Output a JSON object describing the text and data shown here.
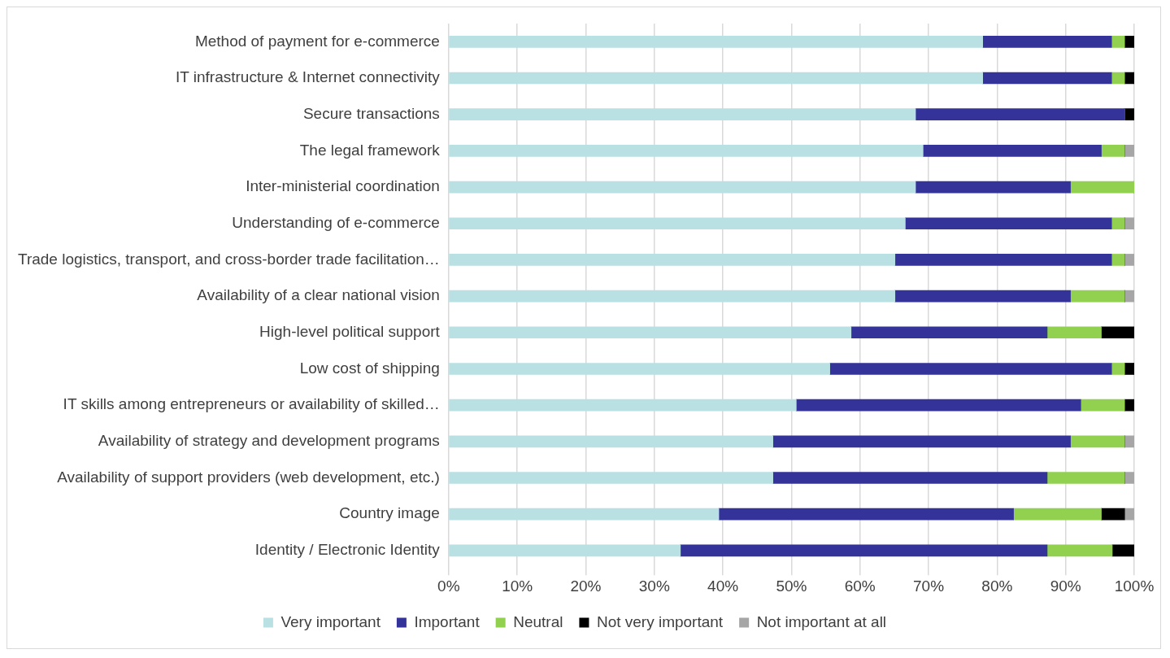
{
  "chart_data": {
    "type": "bar",
    "orientation": "horizontal",
    "stacked": true,
    "categories": [
      "Method of payment for e-commerce",
      "IT infrastructure & Internet connectivity",
      "Secure transactions",
      "The legal framework",
      "Inter-ministerial coordination",
      "Understanding of e-commerce",
      "Trade logistics, transport, and cross-border trade facilitation…",
      "Availability of a clear national vision",
      "High-level political support",
      "Low cost of shipping",
      "IT skills among entrepreneurs or availability of skilled…",
      "Availability of strategy and development programs",
      "Availability of support providers (web development, etc.)",
      "Country image",
      "Identity / Electronic Identity"
    ],
    "series": [
      {
        "name": "Very important",
        "color": "#b9e0e3",
        "values": [
          77.9,
          77.9,
          68.1,
          69.2,
          68.1,
          66.6,
          65.1,
          65.1,
          58.7,
          55.6,
          50.7,
          47.3,
          47.3,
          39.4,
          33.8
        ]
      },
      {
        "name": "Important",
        "color": "#343399",
        "values": [
          18.8,
          18.8,
          30.5,
          26.0,
          22.6,
          30.1,
          31.6,
          25.6,
          28.6,
          41.1,
          41.5,
          43.4,
          40.0,
          43.0,
          53.5
        ]
      },
      {
        "name": "Neutral",
        "color": "#92d050",
        "values": [
          1.9,
          1.9,
          0,
          3.4,
          9.3,
          1.9,
          1.9,
          7.9,
          7.9,
          1.9,
          6.4,
          7.9,
          11.3,
          12.8,
          9.5
        ]
      },
      {
        "name": "Not very important",
        "color": "#000000",
        "values": [
          1.4,
          1.4,
          1.4,
          0,
          0,
          0,
          0,
          0,
          4.8,
          1.4,
          1.4,
          0,
          0,
          3.4,
          3.2
        ]
      },
      {
        "name": "Not important at all",
        "color": "#a6a6a6",
        "values": [
          0,
          0,
          0,
          1.4,
          0,
          1.4,
          1.4,
          1.4,
          0,
          0,
          0,
          1.4,
          1.4,
          1.4,
          0
        ]
      }
    ],
    "xlim": [
      0,
      100
    ],
    "xticks": [
      {
        "value": 0,
        "label": "0%"
      },
      {
        "value": 10,
        "label": "10%"
      },
      {
        "value": 20,
        "label": "20%"
      },
      {
        "value": 30,
        "label": "30%"
      },
      {
        "value": 40,
        "label": "40%"
      },
      {
        "value": 50,
        "label": "50%"
      },
      {
        "value": 60,
        "label": "60%"
      },
      {
        "value": 70,
        "label": "70%"
      },
      {
        "value": 80,
        "label": "80%"
      },
      {
        "value": 90,
        "label": "90%"
      },
      {
        "value": 100,
        "label": "100%"
      }
    ],
    "grid": "x",
    "legend": "bottom"
  }
}
